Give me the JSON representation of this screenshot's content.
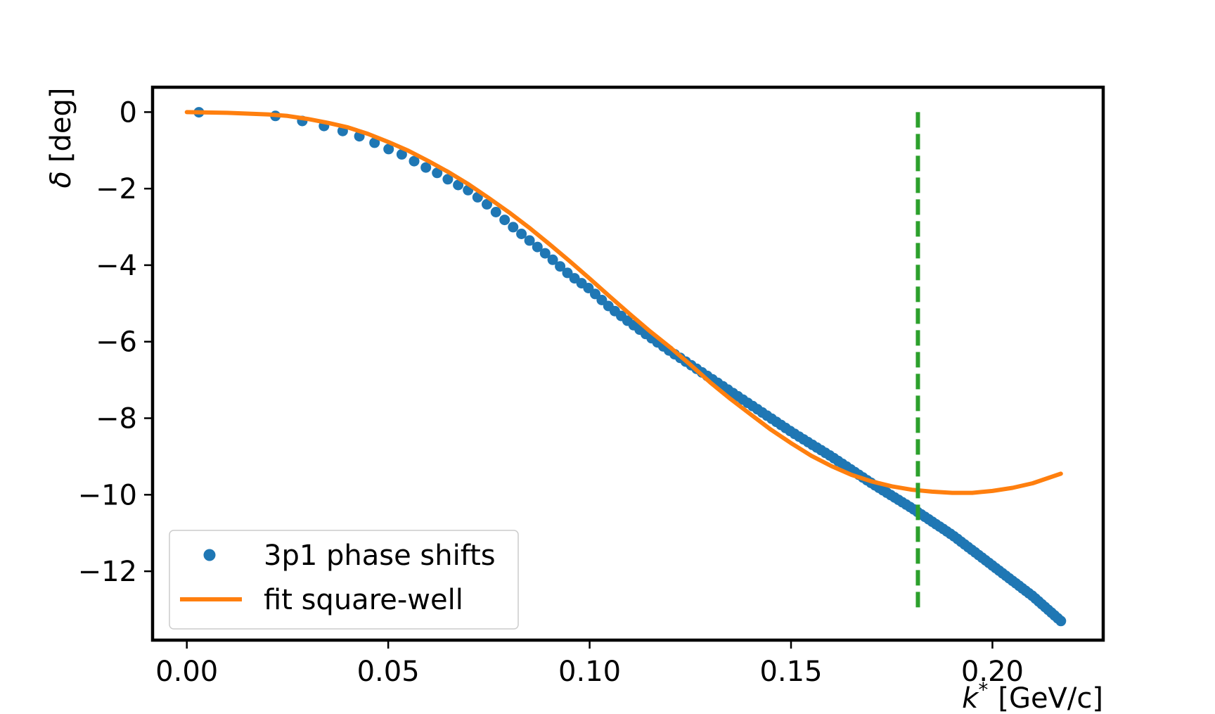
{
  "chart_data": {
    "type": "line",
    "title": "",
    "xlabel_symbol": "k",
    "xlabel_superscript": "*",
    "xlabel_unit": "[GeV/c]",
    "ylabel_symbol": "δ",
    "ylabel_unit": "[deg]",
    "xlim": [
      -0.0085,
      0.2275
    ],
    "ylim": [
      -13.8,
      0.65
    ],
    "xticks": [
      0.0,
      0.05,
      0.1,
      0.15,
      0.2
    ],
    "xtick_labels": [
      "0.00",
      "0.05",
      "0.10",
      "0.15",
      "0.20"
    ],
    "yticks": [
      0,
      -2,
      -4,
      -6,
      -8,
      -10,
      -12
    ],
    "ytick_labels": [
      "0",
      "−2",
      "−4",
      "−6",
      "−8",
      "−10",
      "−12"
    ],
    "legend_position": "lower-left",
    "series": [
      {
        "name": "3p1 phase shifts",
        "kind": "scatter",
        "color": "#1f77b4",
        "x_start": 0.003,
        "x_end": 0.217,
        "count": 140,
        "curve_knots_x": [
          0.002,
          0.022,
          0.031,
          0.038,
          0.044,
          0.049,
          0.054,
          0.058,
          0.062,
          0.066,
          0.07,
          0.075,
          0.08,
          0.085,
          0.09,
          0.095,
          0.1,
          0.105,
          0.11,
          0.115,
          0.12,
          0.13,
          0.14,
          0.15,
          0.16,
          0.17,
          0.18,
          0.19,
          0.2,
          0.21,
          0.217
        ],
        "curve_knots_y": [
          0.0,
          -0.1,
          -0.28,
          -0.47,
          -0.67,
          -0.92,
          -1.13,
          -1.38,
          -1.58,
          -1.83,
          -2.05,
          -2.45,
          -2.92,
          -3.35,
          -3.78,
          -4.25,
          -4.62,
          -5.1,
          -5.5,
          -5.88,
          -6.25,
          -6.95,
          -7.65,
          -8.35,
          -9.0,
          -9.7,
          -10.35,
          -11.05,
          -11.85,
          -12.65,
          -13.3
        ]
      },
      {
        "name": "fit square-well",
        "kind": "line",
        "color": "#ff7f0e",
        "x": [
          0.0,
          0.01,
          0.02,
          0.025,
          0.03,
          0.035,
          0.04,
          0.045,
          0.05,
          0.055,
          0.06,
          0.065,
          0.07,
          0.075,
          0.08,
          0.085,
          0.09,
          0.095,
          0.1,
          0.105,
          0.11,
          0.115,
          0.12,
          0.125,
          0.13,
          0.135,
          0.14,
          0.145,
          0.15,
          0.155,
          0.16,
          0.165,
          0.17,
          0.175,
          0.18,
          0.185,
          0.19,
          0.195,
          0.2,
          0.205,
          0.21,
          0.217
        ],
        "y": [
          0.0,
          -0.02,
          -0.06,
          -0.1,
          -0.18,
          -0.28,
          -0.4,
          -0.57,
          -0.78,
          -1.01,
          -1.28,
          -1.57,
          -1.89,
          -2.25,
          -2.62,
          -3.02,
          -3.45,
          -3.89,
          -4.35,
          -4.82,
          -5.28,
          -5.73,
          -6.15,
          -6.6,
          -7.07,
          -7.5,
          -7.9,
          -8.3,
          -8.65,
          -8.98,
          -9.25,
          -9.48,
          -9.65,
          -9.78,
          -9.87,
          -9.92,
          -9.95,
          -9.95,
          -9.9,
          -9.82,
          -9.7,
          -9.45
        ]
      },
      {
        "name": "",
        "kind": "vline",
        "color": "#2ca02c",
        "x": 0.1815,
        "y_from": 0.0,
        "y_to": -13.0
      }
    ]
  }
}
